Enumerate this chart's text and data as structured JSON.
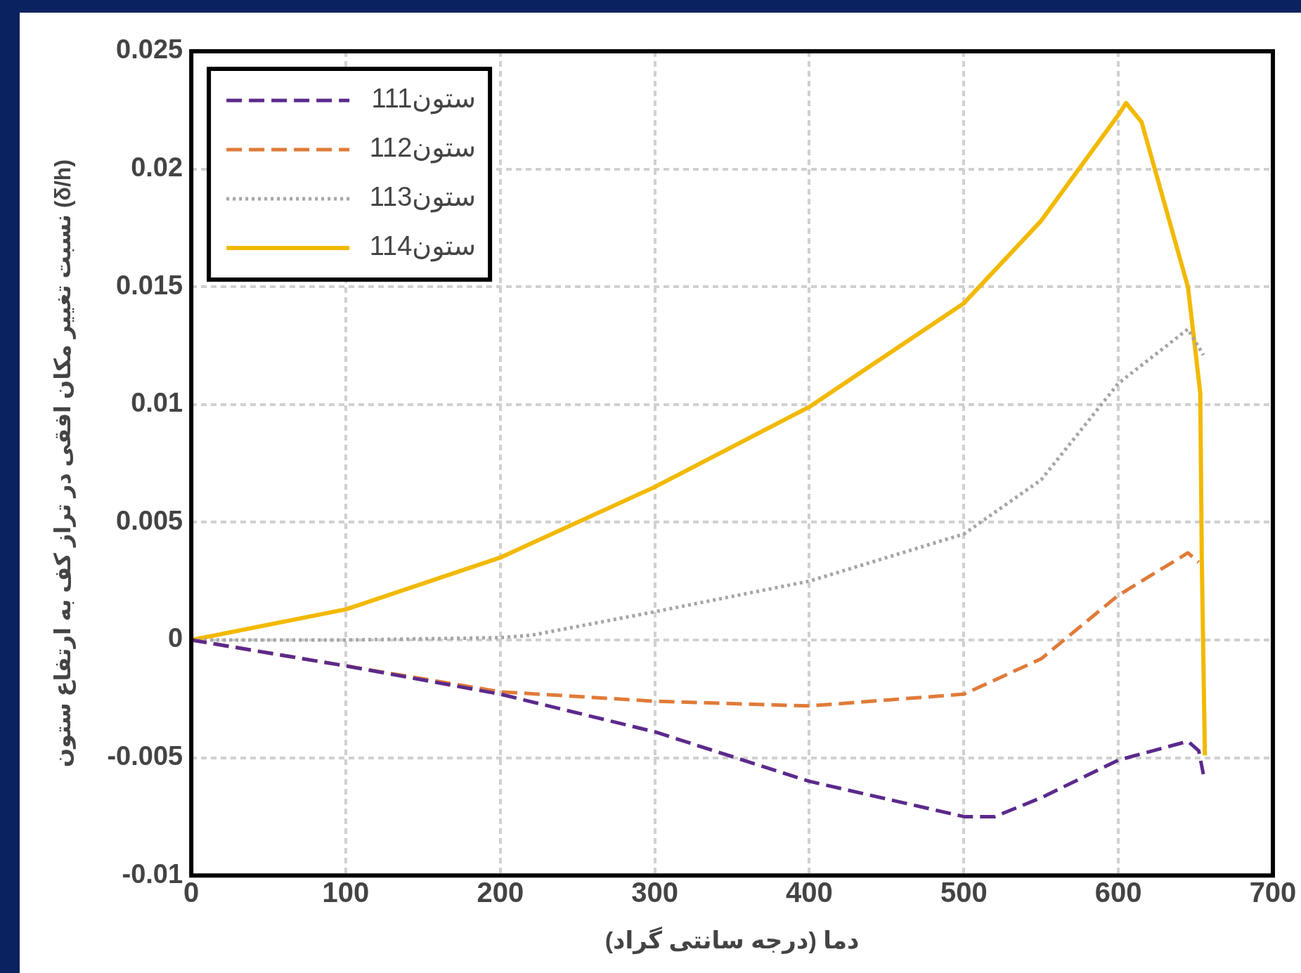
{
  "chart_data": {
    "type": "line",
    "xlabel": "دما (درجه سانتی گراد)",
    "ylabel": "نسبت تغییر مکان افقی در تراز کف به ارتفاع ستون (δ/h)",
    "xlim": [
      0,
      700
    ],
    "xticks": [
      0,
      100,
      200,
      300,
      400,
      500,
      600,
      700
    ],
    "ylim": [
      -0.01,
      0.025
    ],
    "yticks": [
      -0.01,
      -0.005,
      0,
      0.005,
      0.01,
      0.015,
      0.02,
      0.025
    ],
    "grid": true,
    "legend": "top left",
    "marker": "none",
    "series": [
      {
        "name": "ستون111",
        "color": "#5b2a8c",
        "line_style": "dashed",
        "x": [
          0,
          100,
          200,
          300,
          400,
          500,
          520,
          550,
          600,
          645,
          652,
          655
        ],
        "values": [
          0,
          -0.0011,
          -0.0023,
          -0.0039,
          -0.006,
          -0.0075,
          -0.0075,
          -0.0067,
          -0.0051,
          -0.0043,
          -0.0047,
          -0.0057
        ]
      },
      {
        "name": "ستون112",
        "color": "#e07b39",
        "line_style": "dashed",
        "x": [
          0,
          100,
          200,
          300,
          400,
          500,
          550,
          600,
          645,
          652
        ],
        "values": [
          0,
          -0.0011,
          -0.0022,
          -0.0026,
          -0.0028,
          -0.0023,
          -0.0008,
          0.0019,
          0.0037,
          0.0033
        ]
      },
      {
        "name": "ستون113",
        "color": "#a5a5a5",
        "line_style": "dotted",
        "x": [
          0,
          100,
          200,
          220,
          300,
          400,
          500,
          550,
          600,
          645,
          655
        ],
        "values": [
          0,
          0,
          0.0001,
          0.0002,
          0.0012,
          0.0025,
          0.0045,
          0.0068,
          0.0109,
          0.0132,
          0.0121
        ]
      },
      {
        "name": "ستون114",
        "color": "#f2b900",
        "line_style": "solid",
        "x": [
          0,
          100,
          200,
          300,
          400,
          500,
          550,
          600,
          605,
          615,
          645,
          653,
          654,
          656
        ],
        "values": [
          0,
          0.0013,
          0.0035,
          0.0065,
          0.0099,
          0.0143,
          0.0178,
          0.0223,
          0.0228,
          0.022,
          0.015,
          0.0105,
          0.0034,
          -0.0049
        ]
      }
    ]
  }
}
